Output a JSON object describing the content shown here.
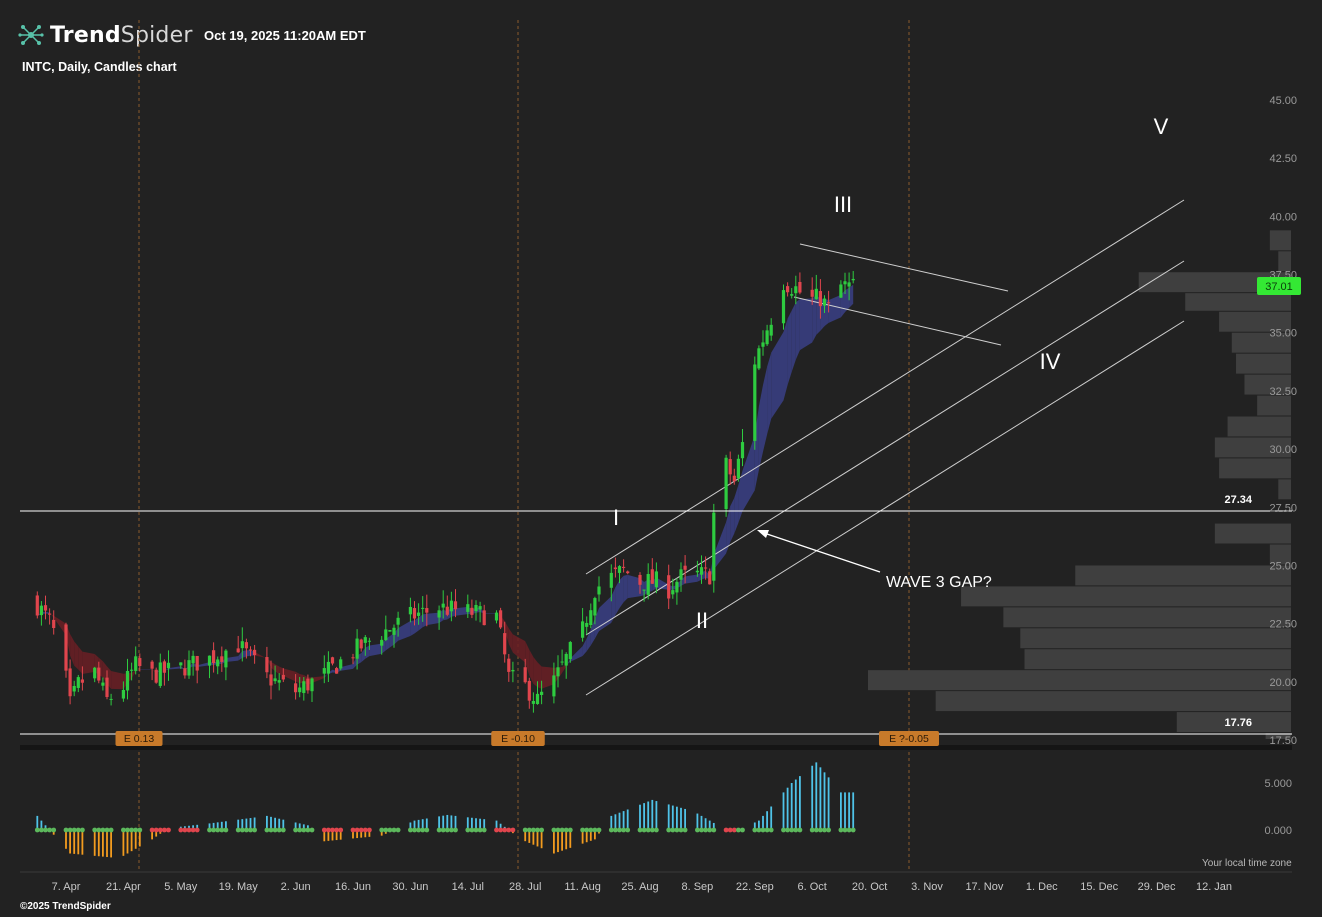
{
  "header": {
    "brand_bold": "Trend",
    "brand_light": "Spider",
    "logo_icon": "trendspider-molecule-icon",
    "datetime": "Oct 19, 2025 11:20AM EDT",
    "chart_title": "INTC, Daily, Candles chart",
    "copyright": "©2025 TrendSpider",
    "timezone_note": "Your local time zone"
  },
  "colors": {
    "background": "#222222",
    "up_candle": "#2ecc40",
    "down_candle": "#e0454d",
    "highlight_candle": "#f5e316",
    "ribbon_bull": "#3a3f86",
    "ribbon_bear": "#6b1f24",
    "volume_profile": "#3f3f3f",
    "price_tag": "#34e834",
    "earnings_badge": "#c87a2a",
    "osc_positive": "#4fc3e8",
    "osc_negative": "#f39c1f",
    "dot_green": "#5cb85c",
    "dot_red": "#e0454d"
  },
  "chart_data": {
    "type": "candlestick",
    "symbol": "INTC",
    "interval": "Daily",
    "last_price": "37.01",
    "y_axis": {
      "ticks": [
        "45.00",
        "42.50",
        "40.00",
        "37.50",
        "35.00",
        "32.50",
        "30.00",
        "27.50",
        "25.00",
        "22.50",
        "20.00",
        "17.50"
      ],
      "range": [
        17.5,
        45
      ]
    },
    "x_axis": {
      "ticks": [
        "7. Apr",
        "21. Apr",
        "5. May",
        "19. May",
        "2. Jun",
        "16. Jun",
        "30. Jun",
        "14. Jul",
        "28. Jul",
        "11. Aug",
        "25. Aug",
        "8. Sep",
        "22. Sep",
        "6. Oct",
        "20. Oct",
        "3. Nov",
        "17. Nov",
        "1. Dec",
        "15. Dec",
        "29. Dec",
        "12. Jan"
      ]
    },
    "horizontal_levels": [
      {
        "value": 27.34,
        "label": "27.34"
      },
      {
        "value": 17.76,
        "label": "17.76"
      }
    ],
    "earnings_events": [
      {
        "date": "24. Apr",
        "label": "E 0.13"
      },
      {
        "date": "24. Jul",
        "label": "E -0.10"
      },
      {
        "date": "23. Oct",
        "label": "E ?-0.05"
      }
    ],
    "wave_labels": [
      "I",
      "II",
      "III",
      "IV",
      "V"
    ],
    "annotation": "WAVE 3 GAP?",
    "oscillator": {
      "ticks": [
        "5.000",
        "0.000"
      ]
    },
    "volume_profile_bins": [
      {
        "price_low": 38.5,
        "price_high": 39.4,
        "volume": 0.05
      },
      {
        "price_low": 37.6,
        "price_high": 38.5,
        "volume": 0.03
      },
      {
        "price_low": 36.7,
        "price_high": 37.6,
        "volume": 0.36
      },
      {
        "price_low": 35.9,
        "price_high": 36.7,
        "volume": 0.25
      },
      {
        "price_low": 35.0,
        "price_high": 35.9,
        "volume": 0.17
      },
      {
        "price_low": 34.1,
        "price_high": 35.0,
        "volume": 0.14
      },
      {
        "price_low": 33.2,
        "price_high": 34.1,
        "volume": 0.13
      },
      {
        "price_low": 32.3,
        "price_high": 33.2,
        "volume": 0.11
      },
      {
        "price_low": 31.4,
        "price_high": 32.3,
        "volume": 0.08
      },
      {
        "price_low": 30.5,
        "price_high": 31.4,
        "volume": 0.15
      },
      {
        "price_low": 29.6,
        "price_high": 30.5,
        "volume": 0.18
      },
      {
        "price_low": 28.7,
        "price_high": 29.6,
        "volume": 0.17
      },
      {
        "price_low": 27.8,
        "price_high": 28.7,
        "volume": 0.03
      },
      {
        "price_low": 25.9,
        "price_high": 26.8,
        "volume": 0.18
      },
      {
        "price_low": 25.0,
        "price_high": 25.9,
        "volume": 0.05
      },
      {
        "price_low": 24.1,
        "price_high": 25.0,
        "volume": 0.51
      },
      {
        "price_low": 23.2,
        "price_high": 24.1,
        "volume": 0.78
      },
      {
        "price_low": 22.3,
        "price_high": 23.2,
        "volume": 0.68
      },
      {
        "price_low": 21.4,
        "price_high": 22.3,
        "volume": 0.64
      },
      {
        "price_low": 20.5,
        "price_high": 21.4,
        "volume": 0.63
      },
      {
        "price_low": 19.6,
        "price_high": 20.5,
        "volume": 1.0
      },
      {
        "price_low": 18.7,
        "price_high": 19.6,
        "volume": 0.84
      },
      {
        "price_low": 17.8,
        "price_high": 18.7,
        "volume": 0.27
      },
      {
        "price_low": 17.5,
        "price_high": 17.8,
        "volume": 0.06
      }
    ]
  }
}
